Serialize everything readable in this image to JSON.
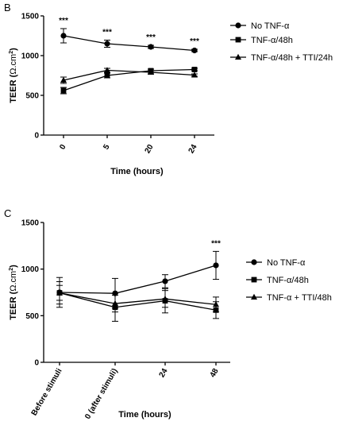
{
  "chart_data": [
    {
      "panel": "B",
      "type": "line",
      "ylabel": "TEER (Ω.cm²)",
      "ylabel_main": "TEER (",
      "ylabel_unit": "Ω.cm",
      "ylabel_sup": "2",
      "ylabel_end": ")",
      "xlabel": "Time (hours)",
      "categories": [
        "0",
        "5",
        "20",
        "24"
      ],
      "ylim": [
        0,
        1500
      ],
      "yticks": [
        0,
        500,
        1000,
        1500
      ],
      "legend_position": "right",
      "series": [
        {
          "name": "No TNF-α",
          "marker": "circle",
          "values": [
            1250,
            1150,
            1110,
            1065
          ],
          "errors": [
            90,
            45,
            20,
            15
          ]
        },
        {
          "name": "TNF-α/48h",
          "marker": "square",
          "values": [
            560,
            750,
            810,
            825
          ],
          "errors": [
            40,
            30,
            20,
            15
          ]
        },
        {
          "name": "TNF-α/48h + TTI/24h",
          "marker": "triangle",
          "values": [
            690,
            815,
            790,
            755
          ],
          "errors": [
            40,
            25,
            20,
            15
          ]
        }
      ],
      "annotations": [
        {
          "category": "0",
          "text": "***"
        },
        {
          "category": "5",
          "text": "***"
        },
        {
          "category": "20",
          "text": "***"
        },
        {
          "category": "24",
          "text": "***"
        }
      ]
    },
    {
      "panel": "C",
      "type": "line",
      "ylabel": "TEER (Ω.cm²)",
      "ylabel_main": "TEER (",
      "ylabel_unit": "Ω.cm",
      "ylabel_sup": "2",
      "ylabel_end": ")",
      "xlabel": "Time (hours)",
      "categories": [
        "Before stimuli",
        "0 (after stimuli)",
        "24",
        "48"
      ],
      "ylim": [
        0,
        1500
      ],
      "yticks": [
        0,
        500,
        1000,
        1500
      ],
      "legend_position": "right",
      "series": [
        {
          "name": "No TNF-α",
          "marker": "circle",
          "values": [
            750,
            740,
            870,
            1040
          ],
          "errors": [
            160,
            160,
            70,
            150
          ]
        },
        {
          "name": "TNF-α/48h",
          "marker": "square",
          "values": [
            745,
            590,
            660,
            560
          ],
          "errors": [
            120,
            150,
            130,
            90
          ]
        },
        {
          "name": "TNF-α + TTI/48h",
          "marker": "triangle",
          "values": [
            745,
            630,
            680,
            620
          ],
          "errors": [
            80,
            90,
            90,
            80
          ]
        }
      ],
      "annotations": [
        {
          "category": "48",
          "text": "***"
        }
      ]
    }
  ]
}
